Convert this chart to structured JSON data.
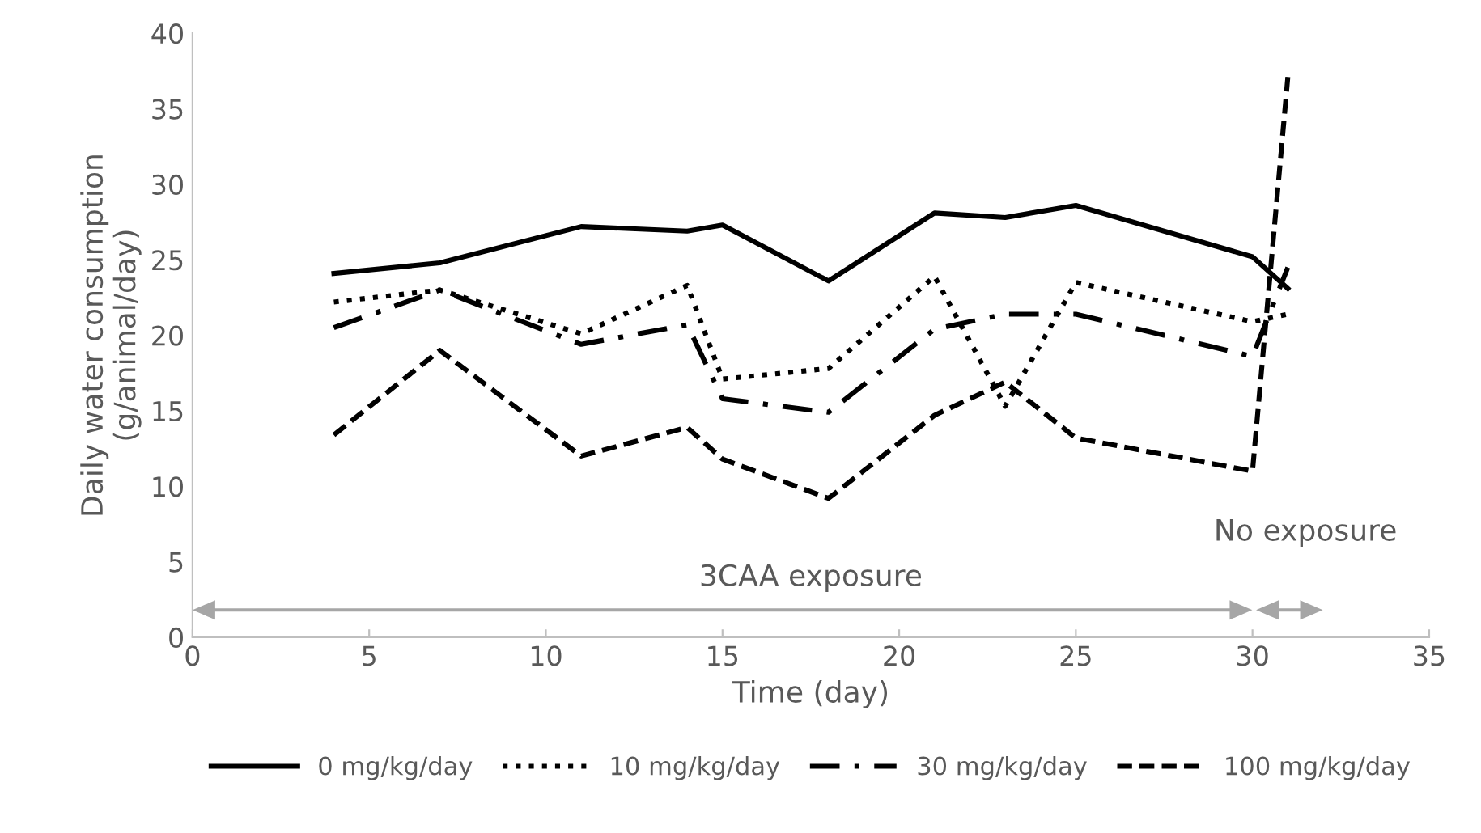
{
  "chart_data": {
    "type": "line",
    "xlabel": "Time (day)",
    "ylabel": "Daily water consumption\n(g/animal/day)",
    "x": [
      4,
      7,
      11,
      14,
      15,
      18,
      21,
      23,
      25,
      30,
      31
    ],
    "series": [
      {
        "name": "0 mg/kg/day",
        "color": "#000000",
        "line_style": "solid",
        "values": [
          24.1,
          24.8,
          27.2,
          26.9,
          27.3,
          23.6,
          28.1,
          27.8,
          28.6,
          25.2,
          23.1
        ]
      },
      {
        "name": "10 mg/kg/day",
        "color": "#000000",
        "line_style": "dotted",
        "values": [
          22.2,
          23.0,
          20.1,
          23.3,
          17.1,
          17.8,
          23.9,
          15.3,
          23.5,
          20.9,
          21.4
        ]
      },
      {
        "name": "30 mg/kg/day",
        "color": "#000000",
        "line_style": "dashdot",
        "values": [
          20.5,
          23.0,
          19.4,
          20.7,
          15.8,
          14.9,
          20.4,
          21.4,
          21.4,
          18.6,
          24.5
        ]
      },
      {
        "name": "100 mg/kg/day",
        "color": "#000000",
        "line_style": "dashed",
        "values": [
          13.4,
          19.0,
          12.0,
          13.9,
          11.8,
          9.2,
          14.7,
          16.9,
          13.2,
          11.0,
          37.1
        ]
      }
    ],
    "xlim": [
      0,
      35
    ],
    "xticks": [
      0,
      5,
      10,
      15,
      20,
      25,
      30,
      35
    ],
    "ylim": [
      0,
      40
    ],
    "yticks": [
      0,
      5,
      10,
      15,
      20,
      25,
      30,
      35,
      40
    ],
    "grid": false,
    "legend": "bottom",
    "marker": "none",
    "annotations": [
      "3CAA exposure",
      "No exposure"
    ]
  }
}
